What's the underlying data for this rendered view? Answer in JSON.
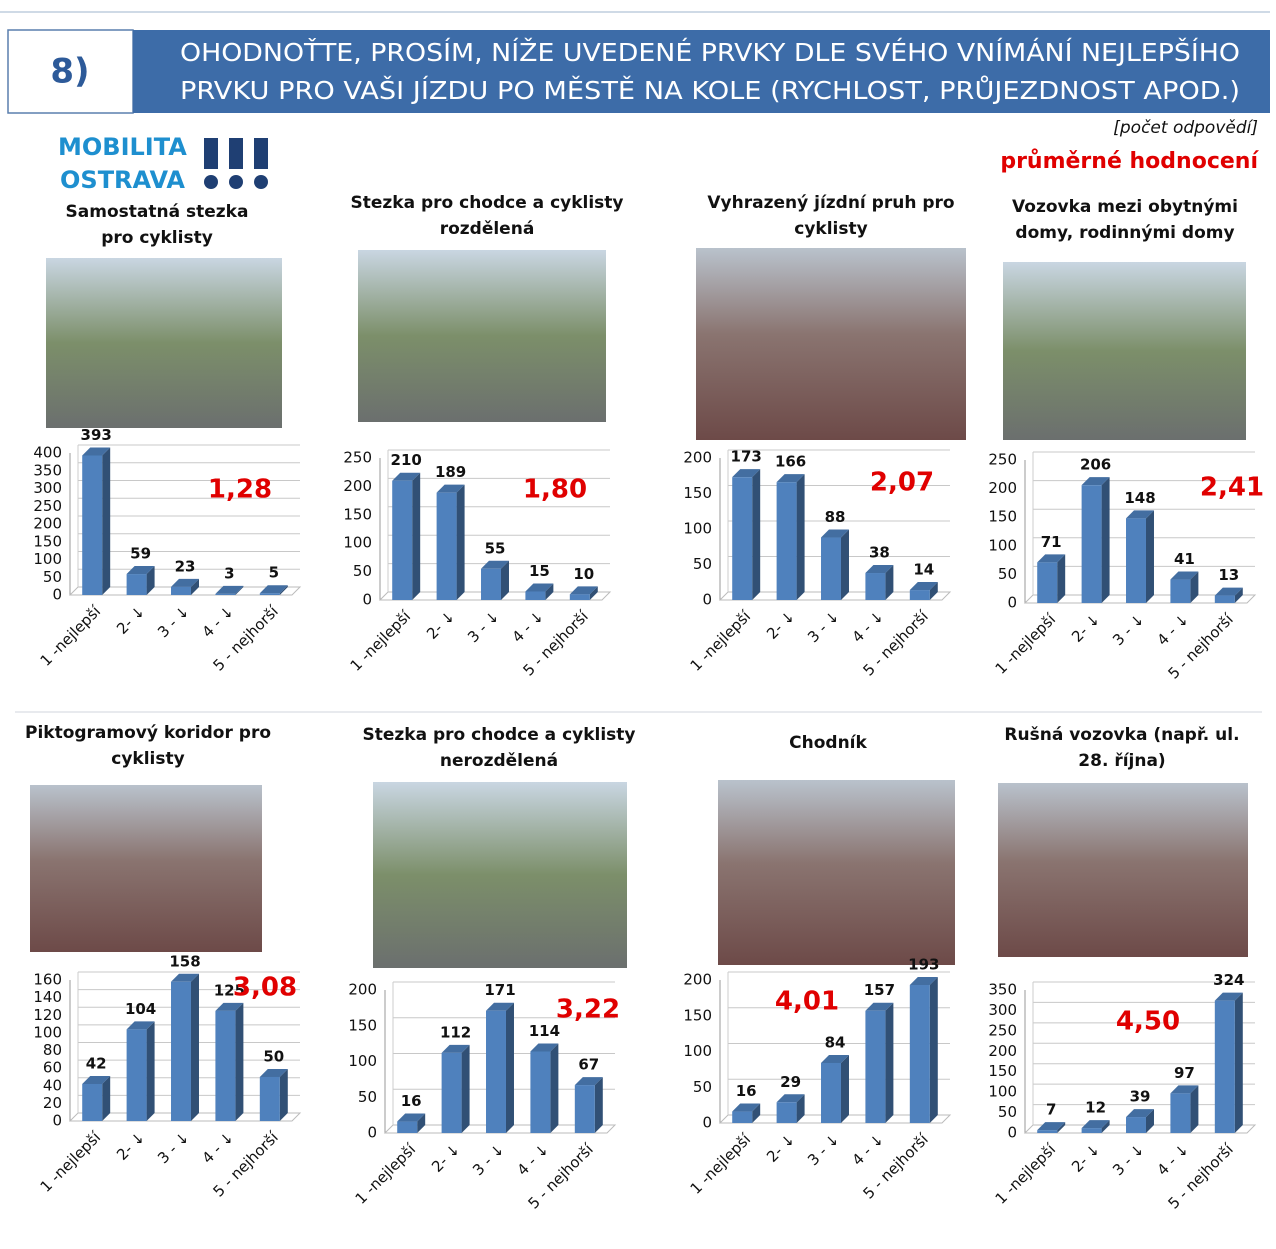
{
  "header": {
    "number": "8)",
    "title": [
      "OHODNOŤTE, PROSÍM, NÍŽE UVEDENÉ PRVKY DLE SVÉHO VNÍMÁNÍ NEJLEPŠÍHO",
      "PRVKU PRO VAŠI JÍZDU PO MĚSTĚ NA KOLE (RYCHLOST, PRŮJEZDNOST APOD.)"
    ]
  },
  "logo": {
    "line1": "MOBILITA",
    "line2": "OSTRAVA"
  },
  "notes": {
    "count": "[počet odpovědí]",
    "average": "průměrné hodnocení"
  },
  "chart_data": [
    {
      "type": "bar",
      "title": [
        "Samostatná stezka",
        "pro cyklisty"
      ],
      "categories": [
        "1 -nejlepší",
        "2- ↓",
        "3 - ↓",
        "4 - ↓",
        "5 - nejhorší"
      ],
      "values": [
        393,
        59,
        23,
        3,
        5
      ],
      "annotation": "1,28",
      "color": "#4f81bd",
      "ylim": [
        0,
        400
      ],
      "yticks": [
        0,
        50,
        100,
        150,
        200,
        250,
        300,
        350,
        400
      ],
      "grid": true
    },
    {
      "type": "bar",
      "title": [
        "Stezka pro chodce a cyklisty",
        "rozdělená"
      ],
      "categories": [
        "1 -nejlepší",
        "2- ↓",
        "3 - ↓",
        "4 - ↓",
        "5 - nejhorší"
      ],
      "values": [
        210,
        189,
        55,
        15,
        10
      ],
      "annotation": "1,80",
      "color": "#4f81bd",
      "ylim": [
        0,
        250
      ],
      "yticks": [
        0,
        50,
        100,
        150,
        200,
        250
      ],
      "grid": true
    },
    {
      "type": "bar",
      "title": [
        "Vyhrazený jízdní pruh pro",
        "cyklisty"
      ],
      "categories": [
        "1 -nejlepší",
        "2- ↓",
        "3 - ↓",
        "4 - ↓",
        "5 - nejhorší"
      ],
      "values": [
        173,
        166,
        88,
        38,
        14
      ],
      "annotation": "2,07",
      "color": "#4f81bd",
      "ylim": [
        0,
        200
      ],
      "yticks": [
        0,
        50,
        100,
        150,
        200
      ],
      "grid": true
    },
    {
      "type": "bar",
      "title": [
        "Vozovka mezi obytnými",
        "domy, rodinnými domy"
      ],
      "categories": [
        "1 -nejlepší",
        "2- ↓",
        "3 - ↓",
        "4 - ↓",
        "5 - nejhorší"
      ],
      "values": [
        71,
        206,
        148,
        41,
        13
      ],
      "annotation": "2,41",
      "color": "#4f81bd",
      "ylim": [
        0,
        250
      ],
      "yticks": [
        0,
        50,
        100,
        150,
        200,
        250
      ],
      "grid": true
    },
    {
      "type": "bar",
      "title": [
        "Piktogramový koridor pro",
        "cyklisty"
      ],
      "categories": [
        "1 -nejlepší",
        "2- ↓",
        "3 - ↓",
        "4 - ↓",
        "5 - nejhorší"
      ],
      "values": [
        42,
        104,
        158,
        125,
        50
      ],
      "annotation": "3,08",
      "color": "#4f81bd",
      "ylim": [
        0,
        160
      ],
      "yticks": [
        0,
        20,
        40,
        60,
        80,
        100,
        120,
        140,
        160
      ],
      "grid": true
    },
    {
      "type": "bar",
      "title": [
        "Stezka pro chodce a cyklisty",
        "nerozdělená"
      ],
      "categories": [
        "1 -nejlepší",
        "2- ↓",
        "3 - ↓",
        "4 - ↓",
        "5 - nejhorší"
      ],
      "values": [
        16,
        112,
        171,
        114,
        67
      ],
      "annotation": "3,22",
      "color": "#4f81bd",
      "ylim": [
        0,
        200
      ],
      "yticks": [
        0,
        50,
        100,
        150,
        200
      ],
      "grid": true
    },
    {
      "type": "bar",
      "title": [
        "Chodník"
      ],
      "categories": [
        "1 -nejlepší",
        "2- ↓",
        "3 - ↓",
        "4 - ↓",
        "5 - nejhorší"
      ],
      "values": [
        16,
        29,
        84,
        157,
        193
      ],
      "annotation": "4,01",
      "color": "#4f81bd",
      "ylim": [
        0,
        200
      ],
      "yticks": [
        0,
        50,
        100,
        150,
        200
      ],
      "grid": true
    },
    {
      "type": "bar",
      "title": [
        "Rušná vozovka (např. ul.",
        "28. října)"
      ],
      "categories": [
        "1 -nejlepší",
        "2- ↓",
        "3 - ↓",
        "4 - ↓",
        "5 - nejhorší"
      ],
      "values": [
        7,
        12,
        39,
        97,
        324
      ],
      "annotation": "4,50",
      "color": "#4f81bd",
      "ylim": [
        0,
        350
      ],
      "yticks": [
        0,
        50,
        100,
        150,
        200,
        250,
        300,
        350
      ],
      "grid": true
    }
  ]
}
